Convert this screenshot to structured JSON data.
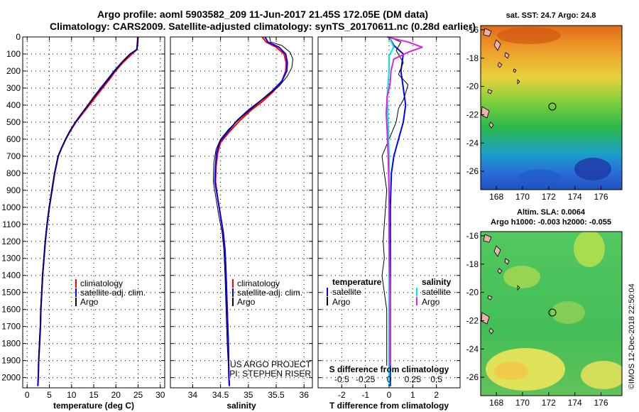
{
  "title_line1": "Argo profile: aoml 5903582_209 11-Jun-2017 21.45S 172.05E (DM data)",
  "title_line2": "Climatology: CARS2009. Satellite-adjusted climatology: synTS_20170611.nc (0.28d earlier)",
  "colors": {
    "climatology": "#ff0000",
    "satellite": "#0000ff",
    "argo": "#000000",
    "sal_satellite": "#00e5e5",
    "sal_argo": "#e020e0"
  },
  "chart_data": [
    {
      "type": "line",
      "name": "temperature",
      "xlabel": "temperature (deg C)",
      "xlim": [
        -1,
        31
      ],
      "xticks": [
        "0",
        "5",
        "10",
        "15",
        "20",
        "25",
        "30"
      ],
      "ylim": [
        0,
        2060
      ],
      "yticks": [
        "0",
        "100",
        "200",
        "300",
        "400",
        "500",
        "600",
        "700",
        "800",
        "900",
        "1000",
        "1100",
        "1200",
        "1300",
        "1400",
        "1500",
        "1600",
        "1700",
        "1800",
        "1900",
        "2000"
      ],
      "legend": [
        "climatology",
        "satellite-adj. clim.",
        "Argo"
      ],
      "series": [
        {
          "name": "climatology",
          "color": "#ff0000",
          "width": 2,
          "points": [
            [
              24.9,
              0
            ],
            [
              24.8,
              40
            ],
            [
              24.7,
              75
            ],
            [
              23.6,
              100
            ],
            [
              21.6,
              150
            ],
            [
              19.9,
              200
            ],
            [
              18.5,
              250
            ],
            [
              17.0,
              300
            ],
            [
              15.5,
              350
            ],
            [
              14.0,
              400
            ],
            [
              12.5,
              450
            ],
            [
              11.0,
              500
            ],
            [
              9.8,
              550
            ],
            [
              8.7,
              600
            ],
            [
              7.8,
              650
            ],
            [
              7.0,
              700
            ],
            [
              6.2,
              800
            ],
            [
              5.6,
              900
            ],
            [
              5.0,
              1000
            ],
            [
              4.5,
              1100
            ],
            [
              4.1,
              1200
            ],
            [
              3.8,
              1300
            ],
            [
              3.5,
              1400
            ],
            [
              3.3,
              1500
            ],
            [
              3.1,
              1600
            ],
            [
              3.0,
              1700
            ],
            [
              2.8,
              1800
            ],
            [
              2.6,
              1900
            ],
            [
              2.5,
              2000
            ],
            [
              2.4,
              2050
            ]
          ]
        },
        {
          "name": "satellite-adj. clim.",
          "color": "#0000ff",
          "width": 2,
          "points": [
            [
              25.0,
              0
            ],
            [
              24.9,
              40
            ],
            [
              24.7,
              75
            ],
            [
              23.2,
              100
            ],
            [
              21.3,
              150
            ],
            [
              19.6,
              200
            ],
            [
              18.1,
              250
            ],
            [
              16.6,
              300
            ],
            [
              15.1,
              350
            ],
            [
              13.7,
              400
            ],
            [
              12.3,
              450
            ],
            [
              10.9,
              500
            ],
            [
              9.7,
              550
            ],
            [
              8.7,
              600
            ],
            [
              7.8,
              650
            ],
            [
              7.0,
              700
            ],
            [
              6.2,
              800
            ],
            [
              5.6,
              900
            ],
            [
              5.0,
              1000
            ],
            [
              4.5,
              1100
            ],
            [
              4.1,
              1200
            ],
            [
              3.8,
              1300
            ],
            [
              3.5,
              1400
            ],
            [
              3.3,
              1500
            ],
            [
              3.1,
              1600
            ],
            [
              3.0,
              1700
            ],
            [
              2.8,
              1800
            ],
            [
              2.6,
              1900
            ],
            [
              2.5,
              2000
            ],
            [
              2.4,
              2050
            ]
          ]
        },
        {
          "name": "Argo",
          "color": "#000000",
          "width": 1,
          "points": [
            [
              25.0,
              0
            ],
            [
              24.9,
              40
            ],
            [
              24.8,
              70
            ],
            [
              23.2,
              100
            ],
            [
              21.4,
              150
            ],
            [
              19.8,
              200
            ],
            [
              18.3,
              250
            ],
            [
              16.8,
              300
            ],
            [
              15.2,
              350
            ],
            [
              13.8,
              400
            ],
            [
              12.2,
              450
            ],
            [
              10.8,
              500
            ],
            [
              9.6,
              550
            ],
            [
              8.6,
              600
            ],
            [
              7.7,
              650
            ],
            [
              6.9,
              700
            ],
            [
              6.1,
              800
            ],
            [
              5.5,
              900
            ],
            [
              4.9,
              1000
            ],
            [
              4.4,
              1100
            ],
            [
              4.0,
              1200
            ],
            [
              3.7,
              1300
            ],
            [
              3.4,
              1400
            ],
            [
              3.2,
              1500
            ],
            [
              3.0,
              1600
            ],
            [
              2.9,
              1700
            ],
            [
              2.7,
              1800
            ],
            [
              2.6,
              1900
            ],
            [
              2.5,
              1930
            ]
          ]
        }
      ]
    },
    {
      "type": "line",
      "name": "salinity",
      "xlabel": "salinity",
      "xlim": [
        33.6,
        36.15
      ],
      "xticks": [
        "34",
        "34.5",
        "35",
        "35.5",
        "36"
      ],
      "ylim": [
        0,
        2060
      ],
      "legend": [
        "climatology",
        "satellite-adj. clim.",
        "Argo"
      ],
      "credit": [
        "US ARGO PROJECT",
        "PI: STEPHEN RISER"
      ],
      "series": [
        {
          "name": "climatology",
          "color": "#ff0000",
          "width": 2,
          "points": [
            [
              35.25,
              0
            ],
            [
              35.32,
              30
            ],
            [
              35.5,
              60
            ],
            [
              35.64,
              100
            ],
            [
              35.68,
              150
            ],
            [
              35.67,
              200
            ],
            [
              35.6,
              260
            ],
            [
              35.45,
              320
            ],
            [
              35.25,
              380
            ],
            [
              35.05,
              430
            ],
            [
              34.85,
              490
            ],
            [
              34.65,
              560
            ],
            [
              34.5,
              620
            ],
            [
              34.45,
              680
            ],
            [
              34.42,
              760
            ],
            [
              34.41,
              850
            ],
            [
              34.45,
              950
            ],
            [
              34.5,
              1050
            ],
            [
              34.55,
              1150
            ],
            [
              34.58,
              1250
            ],
            [
              34.6,
              1400
            ],
            [
              34.62,
              1600
            ],
            [
              34.64,
              1800
            ],
            [
              34.65,
              2000
            ],
            [
              34.66,
              2050
            ]
          ]
        },
        {
          "name": "satellite-adj. clim.",
          "color": "#0000ff",
          "width": 2,
          "points": [
            [
              35.3,
              0
            ],
            [
              35.35,
              30
            ],
            [
              35.55,
              60
            ],
            [
              35.67,
              100
            ],
            [
              35.7,
              150
            ],
            [
              35.69,
              200
            ],
            [
              35.6,
              260
            ],
            [
              35.42,
              320
            ],
            [
              35.2,
              380
            ],
            [
              35.0,
              430
            ],
            [
              34.8,
              490
            ],
            [
              34.62,
              560
            ],
            [
              34.48,
              620
            ],
            [
              34.43,
              680
            ],
            [
              34.41,
              760
            ],
            [
              34.4,
              850
            ],
            [
              34.45,
              950
            ],
            [
              34.5,
              1050
            ],
            [
              34.55,
              1150
            ],
            [
              34.58,
              1250
            ],
            [
              34.6,
              1400
            ],
            [
              34.62,
              1600
            ],
            [
              34.64,
              1800
            ],
            [
              34.65,
              2000
            ],
            [
              34.66,
              2050
            ]
          ]
        },
        {
          "name": "Argo",
          "color": "#000000",
          "width": 1,
          "points": [
            [
              35.38,
              0
            ],
            [
              35.4,
              30
            ],
            [
              35.6,
              50
            ],
            [
              35.75,
              90
            ],
            [
              35.8,
              130
            ],
            [
              35.78,
              180
            ],
            [
              35.7,
              230
            ],
            [
              35.55,
              290
            ],
            [
              35.32,
              350
            ],
            [
              35.1,
              410
            ],
            [
              34.88,
              470
            ],
            [
              34.65,
              540
            ],
            [
              34.5,
              600
            ],
            [
              34.42,
              660
            ],
            [
              34.38,
              740
            ],
            [
              34.37,
              850
            ],
            [
              34.42,
              950
            ],
            [
              34.47,
              1050
            ],
            [
              34.53,
              1150
            ],
            [
              34.56,
              1250
            ],
            [
              34.58,
              1400
            ],
            [
              34.6,
              1600
            ],
            [
              34.62,
              1800
            ],
            [
              34.64,
              1930
            ]
          ]
        }
      ]
    },
    {
      "type": "line",
      "name": "difference",
      "xlabel": "T difference from climatology",
      "xlim": [
        -3,
        3
      ],
      "xticks": [
        "-2",
        "-1",
        "0",
        "1",
        "2"
      ],
      "top_xlabel": "S difference from climatology",
      "top_xticks": [
        "-0.5",
        "-0.25",
        "0",
        "0.25",
        "0.5"
      ],
      "ylim": [
        0,
        2060
      ],
      "legend_left_title": "temperature",
      "legend_right_title": "salinity",
      "legend_left": [
        "satellite",
        "Argo"
      ],
      "legend_right": [
        "satellite",
        "Argo"
      ],
      "series": [
        {
          "name": "T satellite",
          "color": "#0000ff",
          "width": 2,
          "points": [
            [
              0.0,
              0
            ],
            [
              0.2,
              50
            ],
            [
              0.6,
              100
            ],
            [
              0.5,
              200
            ],
            [
              0.6,
              300
            ],
            [
              0.7,
              400
            ],
            [
              0.6,
              500
            ],
            [
              0.4,
              600
            ],
            [
              0.2,
              700
            ],
            [
              0.1,
              800
            ],
            [
              0.05,
              1000
            ],
            [
              0.05,
              1500
            ],
            [
              0.05,
              2050
            ]
          ]
        },
        {
          "name": "T Argo",
          "color": "#000000",
          "width": 1,
          "points": [
            [
              0.0,
              0
            ],
            [
              0.5,
              30
            ],
            [
              0.3,
              80
            ],
            [
              0.6,
              150
            ],
            [
              0.4,
              220
            ],
            [
              0.8,
              280
            ],
            [
              0.7,
              330
            ],
            [
              0.6,
              370
            ],
            [
              0.4,
              420
            ],
            [
              0.3,
              500
            ],
            [
              0.0,
              600
            ],
            [
              -0.3,
              700
            ],
            [
              -0.2,
              800
            ],
            [
              -0.1,
              900
            ],
            [
              -0.15,
              1000
            ],
            [
              -0.2,
              1100
            ],
            [
              -0.25,
              1200
            ],
            [
              -0.2,
              1300
            ],
            [
              -0.3,
              1400
            ],
            [
              -0.2,
              1500
            ],
            [
              -0.1,
              1600
            ],
            [
              -0.1,
              1800
            ],
            [
              -0.1,
              1930
            ]
          ]
        },
        {
          "name": "S satellite",
          "color": "#00e5e5",
          "width": 2,
          "points": [
            [
              0.0,
              0
            ],
            [
              0.05,
              60
            ],
            [
              0.0,
              110
            ],
            [
              0.0,
              200
            ],
            [
              -0.02,
              350
            ],
            [
              -0.01,
              500
            ],
            [
              0.0,
              700
            ],
            [
              0.0,
              1000
            ],
            [
              0.0,
              1500
            ],
            [
              0.0,
              2050
            ]
          ]
        },
        {
          "name": "S Argo",
          "color": "#e020e0",
          "width": 2,
          "points": [
            [
              -0.02,
              0
            ],
            [
              0.2,
              30
            ],
            [
              0.35,
              60
            ],
            [
              0.2,
              90
            ],
            [
              0.05,
              130
            ],
            [
              0.02,
              200
            ],
            [
              0.01,
              280
            ],
            [
              -0.02,
              350
            ],
            [
              -0.03,
              450
            ],
            [
              -0.02,
              550
            ],
            [
              -0.01,
              700
            ],
            [
              0.0,
              900
            ],
            [
              0.0,
              1200
            ],
            [
              0.01,
              1500
            ],
            [
              0.01,
              1930
            ]
          ]
        }
      ]
    },
    {
      "type": "heatmap",
      "name": "sst-map",
      "title": "sat. SST: 24.7 Argo: 24.8",
      "xticks": [
        "168",
        "170",
        "172",
        "174",
        "176"
      ],
      "yticks": [
        "-16",
        "-18",
        "-20",
        "-22",
        "-24",
        "-26"
      ],
      "xlim": [
        166.8,
        177.6
      ],
      "ylim": [
        -27.3,
        -15.7
      ],
      "profile_location": [
        172.05,
        -21.45
      ]
    },
    {
      "type": "heatmap",
      "name": "sla-map",
      "title": "Altim. SLA: 0.0064",
      "subtitle": "Argo h1000: -0.003 h2000: -0.055",
      "xticks": [
        "168",
        "170",
        "172",
        "174",
        "176"
      ],
      "yticks": [
        "-16",
        "-18",
        "-20",
        "-22",
        "-24",
        "-26"
      ],
      "xlim": [
        166.8,
        177.6
      ],
      "ylim": [
        -27.3,
        -15.7
      ],
      "profile_location": [
        172.05,
        -21.45
      ]
    }
  ],
  "watermark": "©IMOS 12-Dec-2018 22:50:04"
}
